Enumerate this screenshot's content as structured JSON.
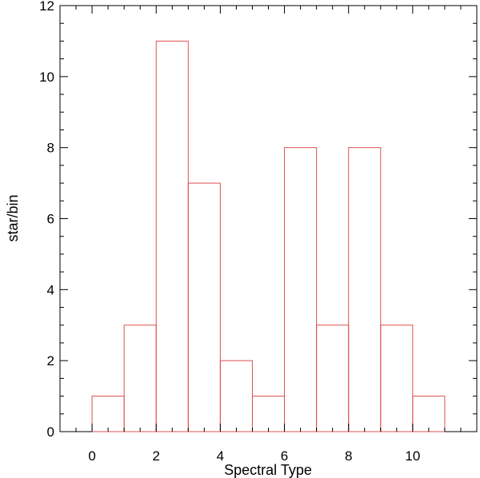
{
  "chart_data": {
    "type": "bar",
    "style": "histogram-outline",
    "xlabel": "Spectral Type",
    "ylabel": "star/bin",
    "xlim": [
      -1,
      12
    ],
    "ylim": [
      0,
      12
    ],
    "x_ticks": [
      0,
      2,
      4,
      6,
      8,
      10
    ],
    "y_ticks": [
      0,
      2,
      4,
      6,
      8,
      10,
      12
    ],
    "bins": [
      {
        "start": 0,
        "end": 1,
        "value": 1
      },
      {
        "start": 1,
        "end": 2,
        "value": 3
      },
      {
        "start": 2,
        "end": 3,
        "value": 11
      },
      {
        "start": 3,
        "end": 4,
        "value": 7
      },
      {
        "start": 4,
        "end": 5,
        "value": 2
      },
      {
        "start": 5,
        "end": 6,
        "value": 1
      },
      {
        "start": 6,
        "end": 7,
        "value": 8
      },
      {
        "start": 7,
        "end": 8,
        "value": 3
      },
      {
        "start": 8,
        "end": 9,
        "value": 8
      },
      {
        "start": 9,
        "end": 10,
        "value": 3
      },
      {
        "start": 10,
        "end": 11,
        "value": 1
      }
    ],
    "bar_color": "#e05050",
    "grid": false
  }
}
